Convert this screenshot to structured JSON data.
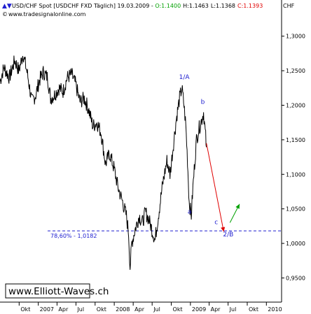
{
  "header": {
    "symbol": "USD/CHF Spot [USDCHF FXD  Täglich] 19.03.2009 - ",
    "open": "O:1.1400",
    "high": "H:1.1463",
    "low": "L:1.1368",
    "close": "C:1.1393",
    "website": "www.tradesignalonline.com",
    "currency": "CHF"
  },
  "watermark": "www.Elliott-Waves.ch",
  "colors": {
    "price": "#000000",
    "wave_label": "#2020d0",
    "fib_line": "#2020d0",
    "projection_down": "#e00000",
    "projection_up": "#00a000",
    "open_text": "#00a000",
    "close_text": "#e00000"
  },
  "chart_data": {
    "type": "line",
    "ylabel": "CHF",
    "ylim": [
      0.915,
      1.322
    ],
    "yticks": [
      "1,3000",
      "1,2500",
      "1,2000",
      "1,1500",
      "1,1000",
      "1,0500",
      "1,0000",
      "0,9500"
    ],
    "ytick_values": [
      1.3,
      1.25,
      1.2,
      1.15,
      1.1,
      1.05,
      1.0,
      0.95
    ],
    "xtick_labels": [
      "Okt",
      "2007",
      "Apr",
      "Jul",
      "Okt",
      "2008",
      "Apr",
      "Jul",
      "Okt",
      "2009",
      "Apr",
      "Jul",
      "Okt",
      "2010"
    ],
    "xtick_dates": [
      "2006-10-01",
      "2007-01-01",
      "2007-04-01",
      "2007-07-01",
      "2007-10-01",
      "2008-01-01",
      "2008-04-01",
      "2008-07-01",
      "2008-10-01",
      "2009-01-01",
      "2009-04-01",
      "2009-07-01",
      "2009-10-01",
      "2010-01-01"
    ],
    "xlim": [
      "2006-07-01",
      "2010-03-15"
    ],
    "series": [
      {
        "style": "daily price",
        "points": [
          [
            "2006-07-01",
            1.235
          ],
          [
            "2006-07-20",
            1.255
          ],
          [
            "2006-08-15",
            1.24
          ],
          [
            "2006-09-10",
            1.265
          ],
          [
            "2006-09-30",
            1.25
          ],
          [
            "2006-10-20",
            1.275
          ],
          [
            "2006-11-10",
            1.245
          ],
          [
            "2006-12-01",
            1.205
          ],
          [
            "2006-12-20",
            1.215
          ],
          [
            "2007-01-05",
            1.235
          ],
          [
            "2007-01-25",
            1.248
          ],
          [
            "2007-02-15",
            1.24
          ],
          [
            "2007-03-01",
            1.21
          ],
          [
            "2007-03-20",
            1.215
          ],
          [
            "2007-04-10",
            1.225
          ],
          [
            "2007-04-30",
            1.22
          ],
          [
            "2007-05-20",
            1.24
          ],
          [
            "2007-06-10",
            1.245
          ],
          [
            "2007-06-30",
            1.23
          ],
          [
            "2007-07-20",
            1.205
          ],
          [
            "2007-08-10",
            1.21
          ],
          [
            "2007-08-30",
            1.195
          ],
          [
            "2007-09-20",
            1.17
          ],
          [
            "2007-10-10",
            1.175
          ],
          [
            "2007-10-30",
            1.16
          ],
          [
            "2007-11-20",
            1.115
          ],
          [
            "2007-12-10",
            1.13
          ],
          [
            "2007-12-30",
            1.11
          ],
          [
            "2008-01-20",
            1.08
          ],
          [
            "2008-02-10",
            1.06
          ],
          [
            "2008-02-28",
            1.04
          ],
          [
            "2008-03-10",
            1.015
          ],
          [
            "2008-03-17",
            0.965
          ],
          [
            "2008-03-25",
            1.0
          ],
          [
            "2008-04-10",
            1.02
          ],
          [
            "2008-04-30",
            1.04
          ],
          [
            "2008-05-15",
            1.03
          ],
          [
            "2008-05-30",
            1.045
          ],
          [
            "2008-06-15",
            1.035
          ],
          [
            "2008-06-30",
            1.02
          ],
          [
            "2008-07-15",
            1.005
          ],
          [
            "2008-07-31",
            1.04
          ],
          [
            "2008-08-20",
            1.085
          ],
          [
            "2008-09-10",
            1.12
          ],
          [
            "2008-09-25",
            1.1
          ],
          [
            "2008-10-10",
            1.14
          ],
          [
            "2008-10-25",
            1.18
          ],
          [
            "2008-11-10",
            1.21
          ],
          [
            "2008-11-21",
            1.225
          ],
          [
            "2008-12-01",
            1.2
          ],
          [
            "2008-12-10",
            1.17
          ],
          [
            "2008-12-18",
            1.12
          ],
          [
            "2008-12-26",
            1.06
          ],
          [
            "2009-01-05",
            1.04
          ],
          [
            "2009-01-15",
            1.09
          ],
          [
            "2009-01-30",
            1.15
          ],
          [
            "2009-02-10",
            1.165
          ],
          [
            "2009-02-25",
            1.18
          ],
          [
            "2009-03-05",
            1.19
          ],
          [
            "2009-03-19",
            1.1393
          ]
        ]
      }
    ],
    "projection": {
      "down": [
        [
          "2009-03-19",
          1.145
        ],
        [
          "2009-06-10",
          1.017
        ]
      ],
      "up": [
        [
          "2009-07-10",
          1.03
        ],
        [
          "2009-08-25",
          1.057
        ]
      ]
    },
    "fib_level": {
      "label": "78,60% - 1,0182",
      "value": 1.0182
    },
    "wave_labels": [
      {
        "text": "1/A",
        "date": "2008-11-21",
        "value": 1.238
      },
      {
        "text": "b",
        "date": "2009-03-05",
        "value": 1.202
      },
      {
        "text": "a",
        "date": "2009-01-01",
        "value": 1.043
      },
      {
        "text": "c",
        "date": "2009-05-10",
        "value": 1.028
      },
      {
        "text": "2/B",
        "date": "2009-06-20",
        "value": 1.01
      }
    ]
  }
}
